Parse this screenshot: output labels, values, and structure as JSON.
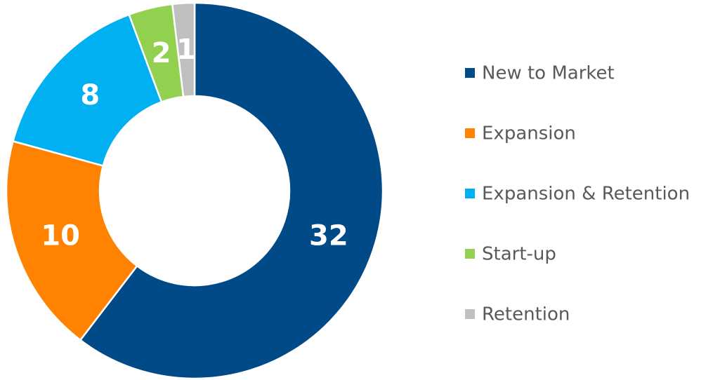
{
  "chart_data": {
    "type": "pie",
    "donut": true,
    "categories": [
      "New to Market",
      "Expansion",
      "Expansion & Retention",
      "Start-up",
      "Retention"
    ],
    "values": [
      32,
      10,
      8,
      2,
      1
    ],
    "colors": [
      "#004a87",
      "#ff8200",
      "#00b0f0",
      "#92d050",
      "#bfbfbf"
    ],
    "legend": "right"
  }
}
